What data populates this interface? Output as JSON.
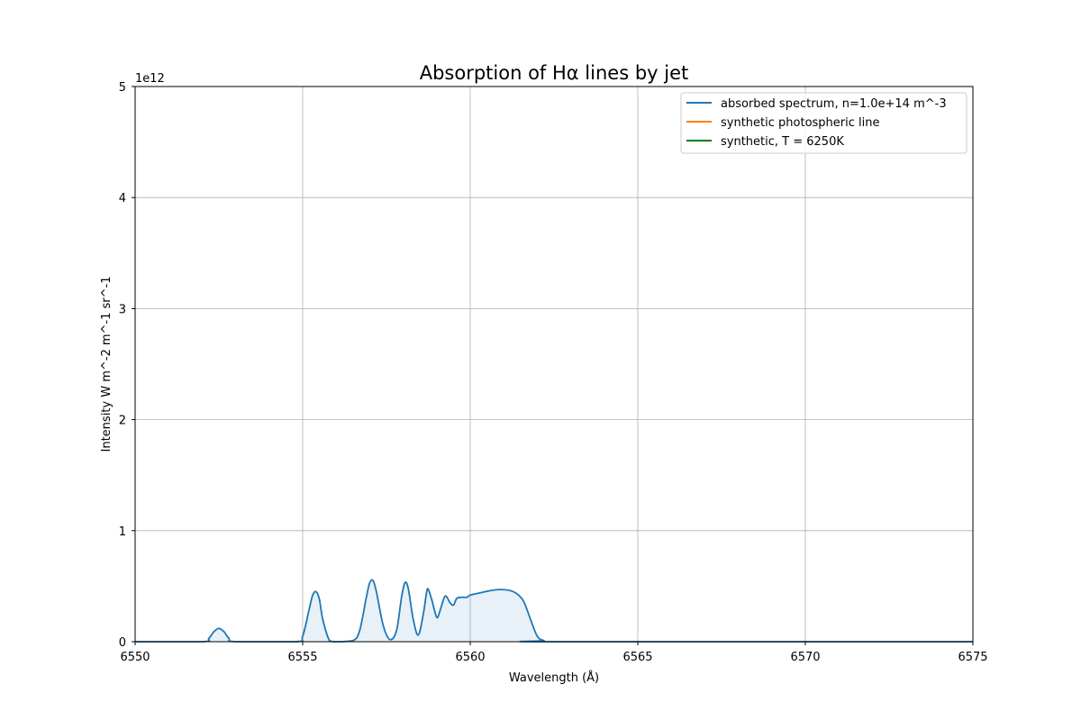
{
  "chart_data": {
    "type": "line",
    "title": "Absorption of Hα lines by jet",
    "xlabel": "Wavelength (Å)",
    "ylabel": "Intensity W m^-2 m^-1 sr^-1",
    "y_offset_label": "1e12",
    "xlim": [
      6550,
      6575
    ],
    "ylim": [
      0,
      5
    ],
    "y_scale_factor": 1000000000000.0,
    "x_ticks": [
      6550,
      6555,
      6560,
      6565,
      6570,
      6575
    ],
    "y_ticks": [
      0,
      1,
      2,
      3,
      4,
      5
    ],
    "grid": true,
    "legend_position": "upper right",
    "series": [
      {
        "name": "absorbed spectrum, n=1.0e+14 m^-3",
        "color": "#1f77b4",
        "fill": true,
        "x": [
          6550,
          6552.0,
          6552.2,
          6552.35,
          6552.5,
          6552.65,
          6552.8,
          6553.0,
          6554.8,
          6555.0,
          6555.2,
          6555.3,
          6555.4,
          6555.5,
          6555.6,
          6555.8,
          6556.0,
          6556.5,
          6556.7,
          6556.9,
          6557.0,
          6557.1,
          6557.2,
          6557.4,
          6557.6,
          6557.8,
          6557.95,
          6558.05,
          6558.15,
          6558.3,
          6558.45,
          6558.6,
          6558.7,
          6558.75,
          6558.85,
          6559.0,
          6559.1,
          6559.25,
          6559.4,
          6559.5,
          6559.6,
          6559.75,
          6559.9,
          6560.0,
          6560.3,
          6560.6,
          6560.9,
          6561.2,
          6561.4,
          6561.6,
          6561.8,
          6562.0,
          6562.2,
          6562.5,
          6575
        ],
        "y": [
          0,
          0,
          0.03,
          0.09,
          0.12,
          0.09,
          0.03,
          0,
          0,
          0.05,
          0.3,
          0.42,
          0.45,
          0.38,
          0.2,
          0.01,
          0,
          0.01,
          0.1,
          0.4,
          0.53,
          0.55,
          0.45,
          0.15,
          0.02,
          0.1,
          0.4,
          0.53,
          0.48,
          0.2,
          0.06,
          0.25,
          0.45,
          0.47,
          0.38,
          0.22,
          0.28,
          0.41,
          0.35,
          0.33,
          0.39,
          0.4,
          0.4,
          0.42,
          0.44,
          0.46,
          0.47,
          0.46,
          0.43,
          0.36,
          0.2,
          0.05,
          0.01,
          0,
          0
        ]
      },
      {
        "name": "synthetic photospheric line",
        "color": "#ff7f0e",
        "x": [],
        "y": []
      },
      {
        "name": "synthetic, T = 6250K",
        "color": "#008000",
        "x": [],
        "y": []
      }
    ]
  }
}
